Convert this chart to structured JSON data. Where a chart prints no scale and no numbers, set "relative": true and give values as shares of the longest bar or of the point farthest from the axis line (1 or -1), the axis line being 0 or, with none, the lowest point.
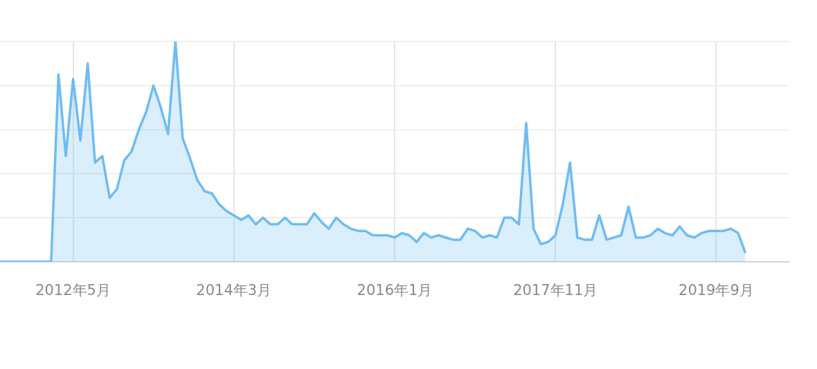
{
  "chart_data": {
    "type": "area",
    "relative": true,
    "grid": true,
    "legend": false,
    "marker": "none",
    "line_style": "solid",
    "xlim": [
      "2011-07",
      "2020-07"
    ],
    "xticks": [
      {
        "value": "2012-05",
        "label": "2012年5月"
      },
      {
        "value": "2014-03",
        "label": "2014年3月"
      },
      {
        "value": "2016-01",
        "label": "2016年1月"
      },
      {
        "value": "2017-11",
        "label": "2017年11月"
      },
      {
        "value": "2019-09",
        "label": "2019年9月"
      }
    ],
    "x": [
      "2011-07",
      "2012-02",
      "2012-03",
      "2012-04",
      "2012-05",
      "2012-06",
      "2012-07",
      "2012-08",
      "2012-09",
      "2012-10",
      "2012-11",
      "2012-12",
      "2013-01",
      "2013-02",
      "2013-03",
      "2013-04",
      "2013-05",
      "2013-06",
      "2013-07",
      "2013-08",
      "2013-09",
      "2013-10",
      "2013-11",
      "2013-12",
      "2014-01",
      "2014-02",
      "2014-03",
      "2014-04",
      "2014-05",
      "2014-06",
      "2014-07",
      "2014-08",
      "2014-09",
      "2014-10",
      "2014-11",
      "2014-12",
      "2015-01",
      "2015-02",
      "2015-03",
      "2015-04",
      "2015-05",
      "2015-06",
      "2015-07",
      "2015-08",
      "2015-09",
      "2015-10",
      "2015-11",
      "2015-12",
      "2016-01",
      "2016-02",
      "2016-03",
      "2016-04",
      "2016-05",
      "2016-06",
      "2016-07",
      "2016-08",
      "2016-09",
      "2016-10",
      "2016-11",
      "2016-12",
      "2017-01",
      "2017-02",
      "2017-03",
      "2017-04",
      "2017-05",
      "2017-06",
      "2017-07",
      "2017-08",
      "2017-09",
      "2017-10",
      "2017-11",
      "2017-12",
      "2018-01",
      "2018-02",
      "2018-03",
      "2018-04",
      "2018-05",
      "2018-06",
      "2018-07",
      "2018-08",
      "2018-09",
      "2018-10",
      "2018-11",
      "2018-12",
      "2019-01",
      "2019-02",
      "2019-03",
      "2019-04",
      "2019-05",
      "2019-06",
      "2019-07",
      "2019-08",
      "2019-09",
      "2019-10",
      "2019-11",
      "2019-12",
      "2020-01"
    ],
    "series": [
      {
        "color": "#6ebcf2",
        "values": [
          0,
          0,
          0.85,
          0.48,
          0.83,
          0.55,
          0.9,
          0.45,
          0.48,
          0.29,
          0.33,
          0.46,
          0.5,
          0.6,
          0.68,
          0.8,
          0.7,
          0.58,
          1,
          0.56,
          0.47,
          0.37,
          0.32,
          0.31,
          0.26,
          0.23,
          0.21,
          0.19,
          0.21,
          0.17,
          0.2,
          0.17,
          0.17,
          0.2,
          0.17,
          0.17,
          0.17,
          0.22,
          0.18,
          0.15,
          0.2,
          0.17,
          0.15,
          0.14,
          0.14,
          0.12,
          0.12,
          0.12,
          0.11,
          0.13,
          0.12,
          0.09,
          0.13,
          0.11,
          0.12,
          0.11,
          0.1,
          0.1,
          0.15,
          0.14,
          0.11,
          0.12,
          0.11,
          0.2,
          0.2,
          0.17,
          0.63,
          0.15,
          0.08,
          0.09,
          0.12,
          0.26,
          0.45,
          0.11,
          0.1,
          0.1,
          0.21,
          0.1,
          0.11,
          0.12,
          0.25,
          0.11,
          0.11,
          0.12,
          0.15,
          0.13,
          0.12,
          0.16,
          0.12,
          0.11,
          0.13,
          0.14,
          0.14,
          0.14,
          0.15,
          0.13,
          0.04
        ]
      }
    ]
  }
}
